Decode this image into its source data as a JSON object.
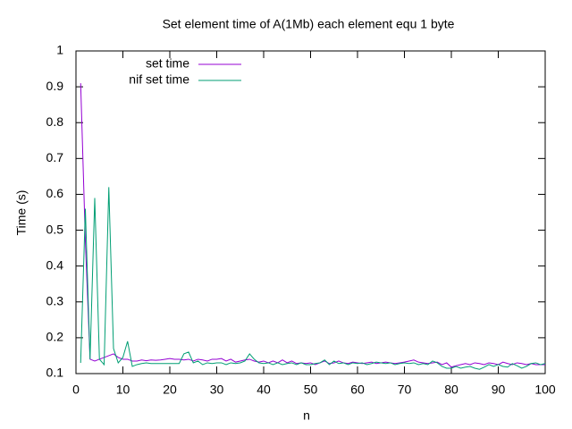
{
  "chart_data": {
    "type": "line",
    "title": "Set element time of A(1Mb) each element equ 1 byte",
    "x_label": "n",
    "y_label": "Time (s)",
    "x": [
      1,
      2,
      3,
      4,
      5,
      6,
      7,
      8,
      9,
      10,
      11,
      12,
      13,
      14,
      15,
      16,
      17,
      18,
      19,
      20,
      21,
      22,
      23,
      24,
      25,
      26,
      27,
      28,
      29,
      30,
      31,
      32,
      33,
      34,
      35,
      36,
      37,
      38,
      39,
      40,
      41,
      42,
      43,
      44,
      45,
      46,
      47,
      48,
      49,
      50,
      51,
      52,
      53,
      54,
      55,
      56,
      57,
      58,
      59,
      60,
      61,
      62,
      63,
      64,
      65,
      66,
      67,
      68,
      69,
      70,
      71,
      72,
      73,
      74,
      75,
      76,
      77,
      78,
      79,
      80,
      81,
      82,
      83,
      84,
      85,
      86,
      87,
      88,
      89,
      90,
      91,
      92,
      93,
      94,
      95,
      96,
      97,
      98,
      99,
      100
    ],
    "series": [
      {
        "name": "set time",
        "color": "#9400d3",
        "values": [
          0.91,
          0.47,
          0.14,
          0.135,
          0.14,
          0.145,
          0.15,
          0.155,
          0.145,
          0.14,
          0.14,
          0.135,
          0.135,
          0.138,
          0.136,
          0.138,
          0.137,
          0.138,
          0.14,
          0.142,
          0.14,
          0.14,
          0.138,
          0.14,
          0.135,
          0.14,
          0.138,
          0.135,
          0.14,
          0.14,
          0.142,
          0.135,
          0.14,
          0.132,
          0.135,
          0.138,
          0.14,
          0.135,
          0.132,
          0.135,
          0.13,
          0.135,
          0.13,
          0.138,
          0.13,
          0.135,
          0.128,
          0.13,
          0.128,
          0.13,
          0.125,
          0.13,
          0.135,
          0.128,
          0.13,
          0.135,
          0.13,
          0.128,
          0.132,
          0.13,
          0.128,
          0.13,
          0.132,
          0.128,
          0.13,
          0.132,
          0.13,
          0.128,
          0.13,
          0.132,
          0.135,
          0.138,
          0.132,
          0.13,
          0.128,
          0.13,
          0.132,
          0.125,
          0.13,
          0.118,
          0.122,
          0.125,
          0.128,
          0.125,
          0.13,
          0.128,
          0.125,
          0.13,
          0.128,
          0.125,
          0.132,
          0.128,
          0.125,
          0.13,
          0.128,
          0.125,
          0.128,
          0.125,
          0.125,
          0.125
        ]
      },
      {
        "name": "nif set time",
        "color": "#009e73",
        "values": [
          0.13,
          0.56,
          0.14,
          0.59,
          0.14,
          0.125,
          0.62,
          0.17,
          0.13,
          0.145,
          0.19,
          0.12,
          0.125,
          0.128,
          0.13,
          0.128,
          0.128,
          0.128,
          0.128,
          0.128,
          0.128,
          0.128,
          0.155,
          0.16,
          0.13,
          0.135,
          0.125,
          0.13,
          0.128,
          0.13,
          0.13,
          0.125,
          0.13,
          0.128,
          0.13,
          0.135,
          0.155,
          0.14,
          0.13,
          0.128,
          0.13,
          0.125,
          0.13,
          0.125,
          0.128,
          0.13,
          0.125,
          0.13,
          0.125,
          0.125,
          0.128,
          0.13,
          0.138,
          0.125,
          0.135,
          0.128,
          0.13,
          0.125,
          0.13,
          0.128,
          0.13,
          0.125,
          0.128,
          0.132,
          0.13,
          0.128,
          0.13,
          0.125,
          0.128,
          0.13,
          0.128,
          0.13,
          0.125,
          0.128,
          0.125,
          0.135,
          0.13,
          0.12,
          0.115,
          0.115,
          0.12,
          0.115,
          0.118,
          0.12,
          0.115,
          0.112,
          0.118,
          0.125,
          0.12,
          0.125,
          0.12,
          0.118,
          0.128,
          0.122,
          0.115,
          0.12,
          0.128,
          0.13,
          0.125,
          0.128
        ]
      }
    ],
    "xlim": [
      0,
      100
    ],
    "xticks": [
      0,
      10,
      20,
      30,
      40,
      50,
      60,
      70,
      80,
      90,
      100
    ],
    "ylim": [
      0.1,
      1
    ],
    "yticks": [
      0.1,
      0.2,
      0.3,
      0.4,
      0.5,
      0.6,
      0.7,
      0.8,
      0.9,
      1
    ],
    "legend": "top-left",
    "grid": false
  }
}
